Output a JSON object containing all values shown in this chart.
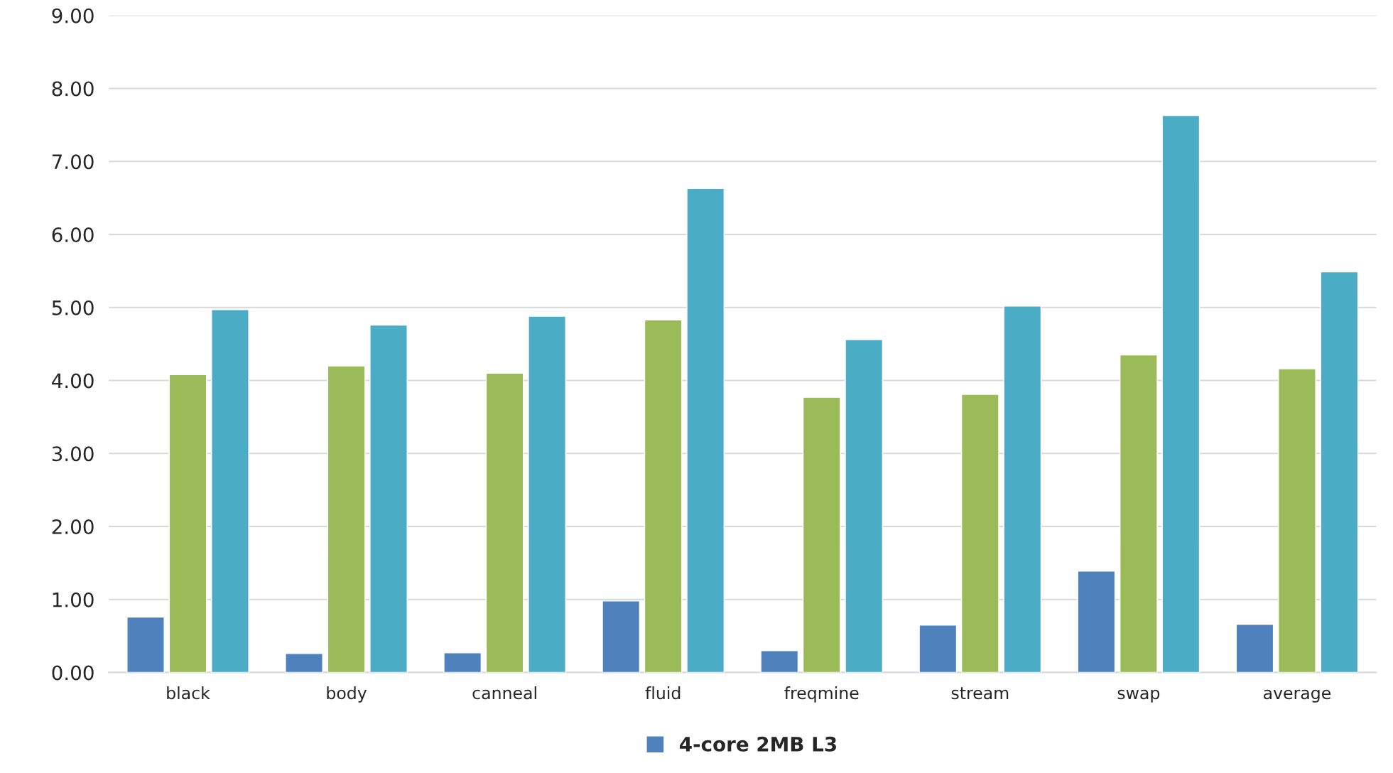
{
  "chart_data": {
    "type": "bar",
    "categories": [
      "black",
      "body",
      "canneal",
      "fluid",
      "freqmine",
      "stream",
      "swap",
      "average"
    ],
    "series": [
      {
        "name": "4-core 2MB L3",
        "color": "#4f81bd",
        "values": [
          0.76,
          0.26,
          0.27,
          0.98,
          0.3,
          0.65,
          1.39,
          0.66
        ]
      },
      {
        "color": "#9bbb59",
        "values": [
          4.08,
          4.2,
          4.1,
          4.83,
          3.77,
          3.81,
          4.35,
          4.16
        ]
      },
      {
        "color": "#4bacc6",
        "values": [
          4.97,
          4.76,
          4.88,
          6.63,
          4.56,
          5.02,
          7.63,
          5.49
        ]
      }
    ],
    "ylim": [
      0,
      9
    ],
    "yticks": [
      {
        "value": 0,
        "label": "0.00"
      },
      {
        "value": 1,
        "label": "1.00"
      },
      {
        "value": 2,
        "label": "2.00"
      },
      {
        "value": 3,
        "label": "3.00"
      },
      {
        "value": 4,
        "label": "4.00"
      },
      {
        "value": 5,
        "label": "5.00"
      },
      {
        "value": 6,
        "label": "6.00"
      },
      {
        "value": 7,
        "label": "7.00"
      },
      {
        "value": 8,
        "label": "8.00"
      },
      {
        "value": 9,
        "label": "9.00"
      }
    ],
    "grid": "y",
    "legend": "bottom"
  }
}
